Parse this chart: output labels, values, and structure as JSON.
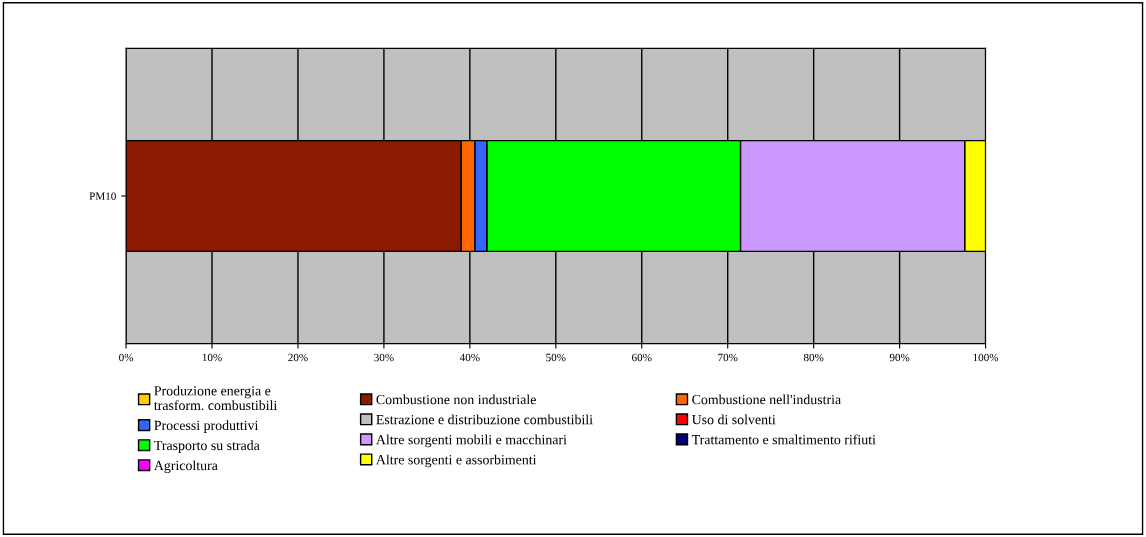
{
  "chart_data": {
    "type": "bar",
    "orientation": "horizontal",
    "stacked": true,
    "categories": [
      "PM10"
    ],
    "series": [
      {
        "name": "Produzione energia e\ntrasform. combustibili",
        "color": "#ffcc00",
        "values": [
          0
        ]
      },
      {
        "name": "Combustione non industriale",
        "color": "#8b1a00",
        "values": [
          39.0
        ]
      },
      {
        "name": "Combustione nell'industria",
        "color": "#ff6600",
        "values": [
          1.6
        ]
      },
      {
        "name": "Processi produttivi",
        "color": "#3366ff",
        "values": [
          1.4
        ]
      },
      {
        "name": "Estrazione e distribuzione combustibili",
        "color": "#c0c0c0",
        "values": [
          0
        ]
      },
      {
        "name": "Uso di solventi",
        "color": "#ff0000",
        "values": [
          0
        ]
      },
      {
        "name": "Trasporto su strada",
        "color": "#00ff00",
        "values": [
          29.5
        ]
      },
      {
        "name": "Altre sorgenti mobili e macchinari",
        "color": "#cc99ff",
        "values": [
          26.1
        ]
      },
      {
        "name": "Trattamento e smaltimento rifiuti",
        "color": "#000080",
        "values": [
          0
        ]
      },
      {
        "name": "Agricoltura",
        "color": "#ff00ff",
        "values": [
          0
        ]
      },
      {
        "name": "Altre sorgenti e assorbimenti",
        "color": "#ffff00",
        "values": [
          2.4
        ]
      }
    ],
    "xlim": [
      0,
      100
    ],
    "xticks": [
      {
        "value": 0,
        "label": "0%"
      },
      {
        "value": 10,
        "label": "10%"
      },
      {
        "value": 20,
        "label": "20%"
      },
      {
        "value": 30,
        "label": "30%"
      },
      {
        "value": 40,
        "label": "40%"
      },
      {
        "value": 50,
        "label": "50%"
      },
      {
        "value": 60,
        "label": "60%"
      },
      {
        "value": 70,
        "label": "70%"
      },
      {
        "value": 80,
        "label": "80%"
      },
      {
        "value": 90,
        "label": "90%"
      },
      {
        "value": 100,
        "label": "100%"
      }
    ],
    "grid": "x",
    "legend": "bottom"
  }
}
